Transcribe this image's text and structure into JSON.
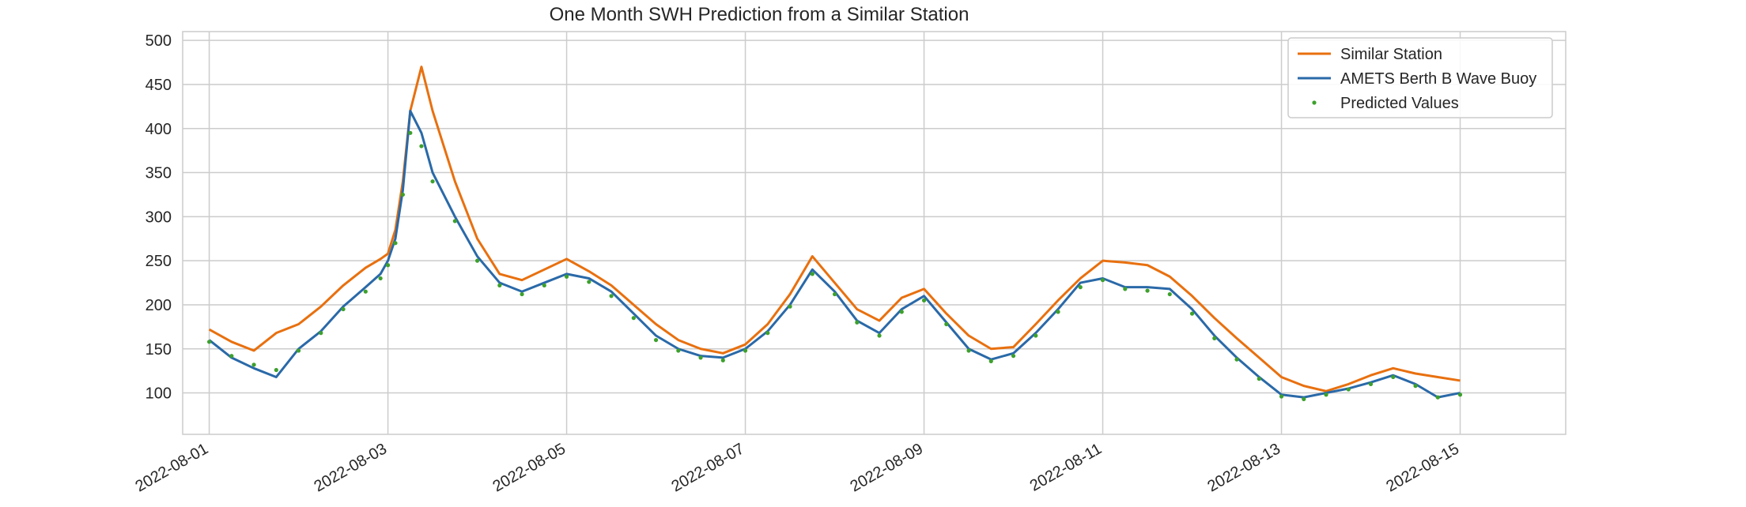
{
  "chart_data": {
    "type": "line",
    "title": "One Month SWH Prediction from a Similar Station",
    "xlabel": "",
    "ylabel": "",
    "x_range": [
      "2022-07-31T16:52:00",
      "2022-08-16T04:21:00"
    ],
    "ylim": [
      53,
      510
    ],
    "x_ticks": [
      "2022-08-01",
      "2022-08-03",
      "2022-08-05",
      "2022-08-07",
      "2022-08-09",
      "2022-08-11",
      "2022-08-13",
      "2022-08-15"
    ],
    "y_ticks": [
      100,
      150,
      200,
      250,
      300,
      350,
      400,
      450,
      500
    ],
    "grid": true,
    "legend_position": "top-right",
    "series": [
      {
        "name": "Similar Station",
        "color": "#e8700f",
        "style": "line",
        "x": [
          "2022-08-01T00:00",
          "2022-08-01T06:00",
          "2022-08-01T12:00",
          "2022-08-01T18:00",
          "2022-08-02T00:00",
          "2022-08-02T06:00",
          "2022-08-02T12:00",
          "2022-08-02T18:00",
          "2022-08-02T22:00",
          "2022-08-03T00:00",
          "2022-08-03T02:00",
          "2022-08-03T04:00",
          "2022-08-03T06:00",
          "2022-08-03T09:00",
          "2022-08-03T12:00",
          "2022-08-03T18:00",
          "2022-08-04T00:00",
          "2022-08-04T06:00",
          "2022-08-04T12:00",
          "2022-08-04T18:00",
          "2022-08-05T00:00",
          "2022-08-05T06:00",
          "2022-08-05T12:00",
          "2022-08-05T18:00",
          "2022-08-06T00:00",
          "2022-08-06T06:00",
          "2022-08-06T12:00",
          "2022-08-06T18:00",
          "2022-08-07T00:00",
          "2022-08-07T06:00",
          "2022-08-07T12:00",
          "2022-08-07T18:00",
          "2022-08-08T00:00",
          "2022-08-08T06:00",
          "2022-08-08T12:00",
          "2022-08-08T18:00",
          "2022-08-09T00:00",
          "2022-08-09T06:00",
          "2022-08-09T12:00",
          "2022-08-09T18:00",
          "2022-08-10T00:00",
          "2022-08-10T06:00",
          "2022-08-10T12:00",
          "2022-08-10T18:00",
          "2022-08-11T00:00",
          "2022-08-11T06:00",
          "2022-08-11T12:00",
          "2022-08-11T18:00",
          "2022-08-12T00:00",
          "2022-08-12T06:00",
          "2022-08-12T12:00",
          "2022-08-12T18:00",
          "2022-08-13T00:00",
          "2022-08-13T06:00",
          "2022-08-13T12:00",
          "2022-08-13T18:00",
          "2022-08-14T00:00",
          "2022-08-14T06:00",
          "2022-08-14T12:00",
          "2022-08-14T18:00",
          "2022-08-15T00:00"
        ],
        "values": [
          172,
          158,
          148,
          168,
          178,
          198,
          222,
          242,
          252,
          258,
          285,
          340,
          420,
          470,
          420,
          340,
          275,
          235,
          228,
          240,
          252,
          238,
          222,
          200,
          178,
          160,
          150,
          145,
          155,
          178,
          212,
          255,
          225,
          195,
          182,
          208,
          218,
          190,
          165,
          150,
          152,
          178,
          205,
          230,
          250,
          248,
          245,
          232,
          210,
          185,
          162,
          140,
          118,
          108,
          102,
          110,
          120,
          128,
          122,
          118,
          114
        ]
      },
      {
        "name": "AMETS Berth B Wave Buoy",
        "color": "#2a69a8",
        "style": "line",
        "x": [
          "2022-08-01T00:00",
          "2022-08-01T06:00",
          "2022-08-01T12:00",
          "2022-08-01T18:00",
          "2022-08-02T00:00",
          "2022-08-02T06:00",
          "2022-08-02T12:00",
          "2022-08-02T18:00",
          "2022-08-02T22:00",
          "2022-08-03T00:00",
          "2022-08-03T02:00",
          "2022-08-03T04:00",
          "2022-08-03T06:00",
          "2022-08-03T09:00",
          "2022-08-03T12:00",
          "2022-08-03T18:00",
          "2022-08-04T00:00",
          "2022-08-04T06:00",
          "2022-08-04T12:00",
          "2022-08-04T18:00",
          "2022-08-05T00:00",
          "2022-08-05T06:00",
          "2022-08-05T12:00",
          "2022-08-05T18:00",
          "2022-08-06T00:00",
          "2022-08-06T06:00",
          "2022-08-06T12:00",
          "2022-08-06T18:00",
          "2022-08-07T00:00",
          "2022-08-07T06:00",
          "2022-08-07T12:00",
          "2022-08-07T18:00",
          "2022-08-08T00:00",
          "2022-08-08T06:00",
          "2022-08-08T12:00",
          "2022-08-08T18:00",
          "2022-08-09T00:00",
          "2022-08-09T06:00",
          "2022-08-09T12:00",
          "2022-08-09T18:00",
          "2022-08-10T00:00",
          "2022-08-10T06:00",
          "2022-08-10T12:00",
          "2022-08-10T18:00",
          "2022-08-11T00:00",
          "2022-08-11T06:00",
          "2022-08-11T12:00",
          "2022-08-11T18:00",
          "2022-08-12T00:00",
          "2022-08-12T06:00",
          "2022-08-12T12:00",
          "2022-08-12T18:00",
          "2022-08-13T00:00",
          "2022-08-13T06:00",
          "2022-08-13T12:00",
          "2022-08-13T18:00",
          "2022-08-14T00:00",
          "2022-08-14T06:00",
          "2022-08-14T12:00",
          "2022-08-14T18:00",
          "2022-08-15T00:00"
        ],
        "values": [
          160,
          140,
          128,
          118,
          150,
          170,
          198,
          220,
          235,
          250,
          275,
          330,
          420,
          395,
          350,
          300,
          255,
          225,
          215,
          225,
          235,
          230,
          215,
          190,
          165,
          150,
          142,
          140,
          150,
          170,
          200,
          240,
          215,
          182,
          168,
          195,
          210,
          180,
          150,
          138,
          145,
          168,
          195,
          225,
          230,
          220,
          220,
          218,
          195,
          165,
          140,
          118,
          98,
          95,
          100,
          105,
          112,
          120,
          110,
          95,
          100
        ]
      },
      {
        "name": "Predicted Values",
        "color": "#3da02c",
        "style": "scatter",
        "x": [
          "2022-08-01T00:00",
          "2022-08-01T06:00",
          "2022-08-01T12:00",
          "2022-08-01T18:00",
          "2022-08-02T00:00",
          "2022-08-02T06:00",
          "2022-08-02T12:00",
          "2022-08-02T18:00",
          "2022-08-02T22:00",
          "2022-08-03T00:00",
          "2022-08-03T02:00",
          "2022-08-03T04:00",
          "2022-08-03T06:00",
          "2022-08-03T09:00",
          "2022-08-03T12:00",
          "2022-08-03T18:00",
          "2022-08-04T00:00",
          "2022-08-04T06:00",
          "2022-08-04T12:00",
          "2022-08-04T18:00",
          "2022-08-05T00:00",
          "2022-08-05T06:00",
          "2022-08-05T12:00",
          "2022-08-05T18:00",
          "2022-08-06T00:00",
          "2022-08-06T06:00",
          "2022-08-06T12:00",
          "2022-08-06T18:00",
          "2022-08-07T00:00",
          "2022-08-07T06:00",
          "2022-08-07T12:00",
          "2022-08-07T18:00",
          "2022-08-08T00:00",
          "2022-08-08T06:00",
          "2022-08-08T12:00",
          "2022-08-08T18:00",
          "2022-08-09T00:00",
          "2022-08-09T06:00",
          "2022-08-09T12:00",
          "2022-08-09T18:00",
          "2022-08-10T00:00",
          "2022-08-10T06:00",
          "2022-08-10T12:00",
          "2022-08-10T18:00",
          "2022-08-11T00:00",
          "2022-08-11T06:00",
          "2022-08-11T12:00",
          "2022-08-11T18:00",
          "2022-08-12T00:00",
          "2022-08-12T06:00",
          "2022-08-12T12:00",
          "2022-08-12T18:00",
          "2022-08-13T00:00",
          "2022-08-13T06:00",
          "2022-08-13T12:00",
          "2022-08-13T18:00",
          "2022-08-14T00:00",
          "2022-08-14T06:00",
          "2022-08-14T12:00",
          "2022-08-14T18:00",
          "2022-08-15T00:00"
        ],
        "values": [
          158,
          142,
          132,
          126,
          148,
          168,
          195,
          215,
          230,
          245,
          270,
          325,
          395,
          380,
          340,
          295,
          250,
          222,
          212,
          222,
          232,
          226,
          210,
          185,
          160,
          148,
          140,
          137,
          148,
          168,
          198,
          235,
          212,
          180,
          165,
          192,
          205,
          178,
          148,
          136,
          142,
          165,
          192,
          220,
          228,
          218,
          216,
          212,
          190,
          162,
          138,
          116,
          96,
          93,
          98,
          104,
          110,
          118,
          108,
          95,
          98
        ]
      }
    ]
  }
}
